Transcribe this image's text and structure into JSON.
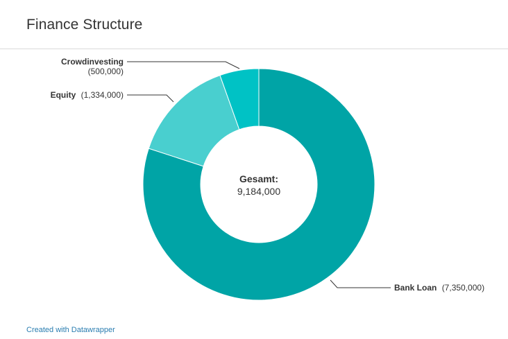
{
  "header": {
    "title": "Finance Structure"
  },
  "footer": {
    "credit": "Created with Datawrapper"
  },
  "chart_data": {
    "type": "donut",
    "title": "Finance Structure",
    "center_label": "Gesamt:",
    "center_value": "9,184,000",
    "slices": [
      {
        "label": "Bank Loan",
        "value": 7350000,
        "value_label": "(7,350,000)",
        "color": "#00a4a6"
      },
      {
        "label": "Equity",
        "value": 1334000,
        "value_label": "(1,334,000)",
        "color": "#49cfcf"
      },
      {
        "label": "Crowdinvesting",
        "value": 500000,
        "value_label": "(500,000)",
        "color": "#00c2c5"
      }
    ]
  }
}
